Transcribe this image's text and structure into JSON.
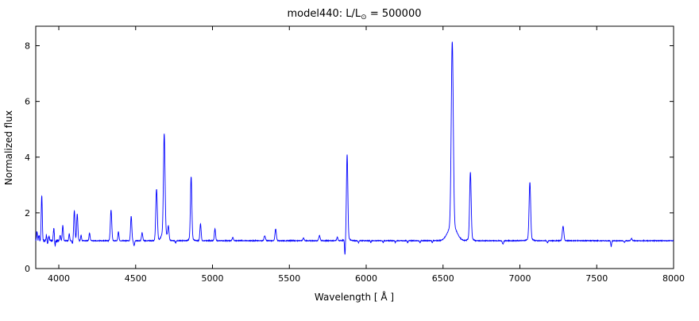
{
  "figure": {
    "title": {
      "pre": "model440: L/L",
      "sub": "⊙",
      "post": " = 500000"
    },
    "xlabel": "Wavelength [ Å ]",
    "ylabel": "Normalized flux"
  },
  "chart_data": {
    "type": "line",
    "title": "model440: L/L⊙ = 500000",
    "xlabel": "Wavelength [ Å ]",
    "ylabel": "Normalized flux",
    "xlim": [
      3850,
      8000
    ],
    "ylim": [
      0,
      8.7
    ],
    "xticks": [
      4000,
      4500,
      5000,
      5500,
      6000,
      6500,
      7000,
      7500,
      8000
    ],
    "yticks": [
      0,
      2,
      4,
      6,
      8
    ],
    "grid": false,
    "legend": "none",
    "line_color": "#0000ff",
    "frame_color": "#000000",
    "continuum": 1.0,
    "peaks": [
      {
        "x": 3858,
        "amp": 0.32,
        "sigma": 3
      },
      {
        "x": 3871,
        "amp": 0.2,
        "sigma": 3
      },
      {
        "x": 3889,
        "amp": 1.62,
        "sigma": 3.5
      },
      {
        "x": 3920,
        "amp": 0.22,
        "sigma": 3
      },
      {
        "x": 3936,
        "amp": 0.15,
        "sigma": 3
      },
      {
        "x": 3968,
        "amp": 0.45,
        "sigma": 3.5
      },
      {
        "x": 4009,
        "amp": 0.2,
        "sigma": 3
      },
      {
        "x": 4026,
        "amp": 0.55,
        "sigma": 3.5
      },
      {
        "x": 4068,
        "amp": 0.25,
        "sigma": 3
      },
      {
        "x": 4101,
        "amp": 1.08,
        "sigma": 4
      },
      {
        "x": 4120,
        "amp": 0.95,
        "sigma": 4
      },
      {
        "x": 4145,
        "amp": 0.2,
        "sigma": 3
      },
      {
        "x": 4200,
        "amp": 0.28,
        "sigma": 3.5
      },
      {
        "x": 4340,
        "amp": 1.1,
        "sigma": 4.5
      },
      {
        "x": 4388,
        "amp": 0.32,
        "sigma": 3.5
      },
      {
        "x": 4471,
        "amp": 0.88,
        "sigma": 4
      },
      {
        "x": 4542,
        "amp": 0.28,
        "sigma": 4
      },
      {
        "x": 4636,
        "amp": 1.85,
        "sigma": 5
      },
      {
        "x": 4686,
        "amp": 3.5,
        "sigma": 5
      },
      {
        "x": 4686,
        "amp": 0.35,
        "sigma": 16
      },
      {
        "x": 4713,
        "amp": 0.45,
        "sigma": 4
      },
      {
        "x": 4861,
        "amp": 2.2,
        "sigma": 4.5
      },
      {
        "x": 4861,
        "amp": 0.1,
        "sigma": 12
      },
      {
        "x": 4922,
        "amp": 0.6,
        "sigma": 4
      },
      {
        "x": 5016,
        "amp": 0.42,
        "sigma": 4
      },
      {
        "x": 5132,
        "amp": 0.12,
        "sigma": 4
      },
      {
        "x": 5340,
        "amp": 0.18,
        "sigma": 4.5
      },
      {
        "x": 5411,
        "amp": 0.42,
        "sigma": 4.5
      },
      {
        "x": 5592,
        "amp": 0.1,
        "sigma": 4
      },
      {
        "x": 5696,
        "amp": 0.18,
        "sigma": 4.5
      },
      {
        "x": 5812,
        "amp": 0.12,
        "sigma": 4
      },
      {
        "x": 5876,
        "amp": 3.0,
        "sigma": 4.5
      },
      {
        "x": 5876,
        "amp": 0.1,
        "sigma": 14
      },
      {
        "x": 6560,
        "amp": 6.6,
        "sigma": 6.5
      },
      {
        "x": 6560,
        "amp": 0.55,
        "sigma": 28
      },
      {
        "x": 6678,
        "amp": 2.35,
        "sigma": 5
      },
      {
        "x": 6678,
        "amp": 0.1,
        "sigma": 14
      },
      {
        "x": 7065,
        "amp": 2.0,
        "sigma": 5
      },
      {
        "x": 7065,
        "amp": 0.1,
        "sigma": 14
      },
      {
        "x": 7281,
        "amp": 0.52,
        "sigma": 5
      },
      {
        "x": 7726,
        "amp": 0.08,
        "sigma": 4
      }
    ],
    "dips": [
      {
        "x": 3925,
        "depth": 0.12,
        "sigma": 3
      },
      {
        "x": 3975,
        "depth": 0.2,
        "sigma": 3
      },
      {
        "x": 4089,
        "depth": 0.1,
        "sigma": 3
      },
      {
        "x": 4490,
        "depth": 0.18,
        "sigma": 3.5
      },
      {
        "x": 4760,
        "depth": 0.08,
        "sigma": 3
      },
      {
        "x": 5862,
        "depth": 0.58,
        "sigma": 2.8
      },
      {
        "x": 5950,
        "depth": 0.07,
        "sigma": 2.5
      },
      {
        "x": 6030,
        "depth": 0.07,
        "sigma": 2.5
      },
      {
        "x": 6110,
        "depth": 0.07,
        "sigma": 2.5
      },
      {
        "x": 6190,
        "depth": 0.07,
        "sigma": 2.5
      },
      {
        "x": 6270,
        "depth": 0.07,
        "sigma": 2.5
      },
      {
        "x": 6350,
        "depth": 0.07,
        "sigma": 2.5
      },
      {
        "x": 6430,
        "depth": 0.07,
        "sigma": 2.5
      },
      {
        "x": 6890,
        "depth": 0.12,
        "sigma": 4
      },
      {
        "x": 7180,
        "depth": 0.08,
        "sigma": 3
      },
      {
        "x": 7594,
        "depth": 0.2,
        "sigma": 3
      },
      {
        "x": 7680,
        "depth": 0.06,
        "sigma": 3
      }
    ],
    "noise": {
      "amp": 0.012,
      "blue_region_end": 4000,
      "blue_amp": 0.045
    }
  }
}
